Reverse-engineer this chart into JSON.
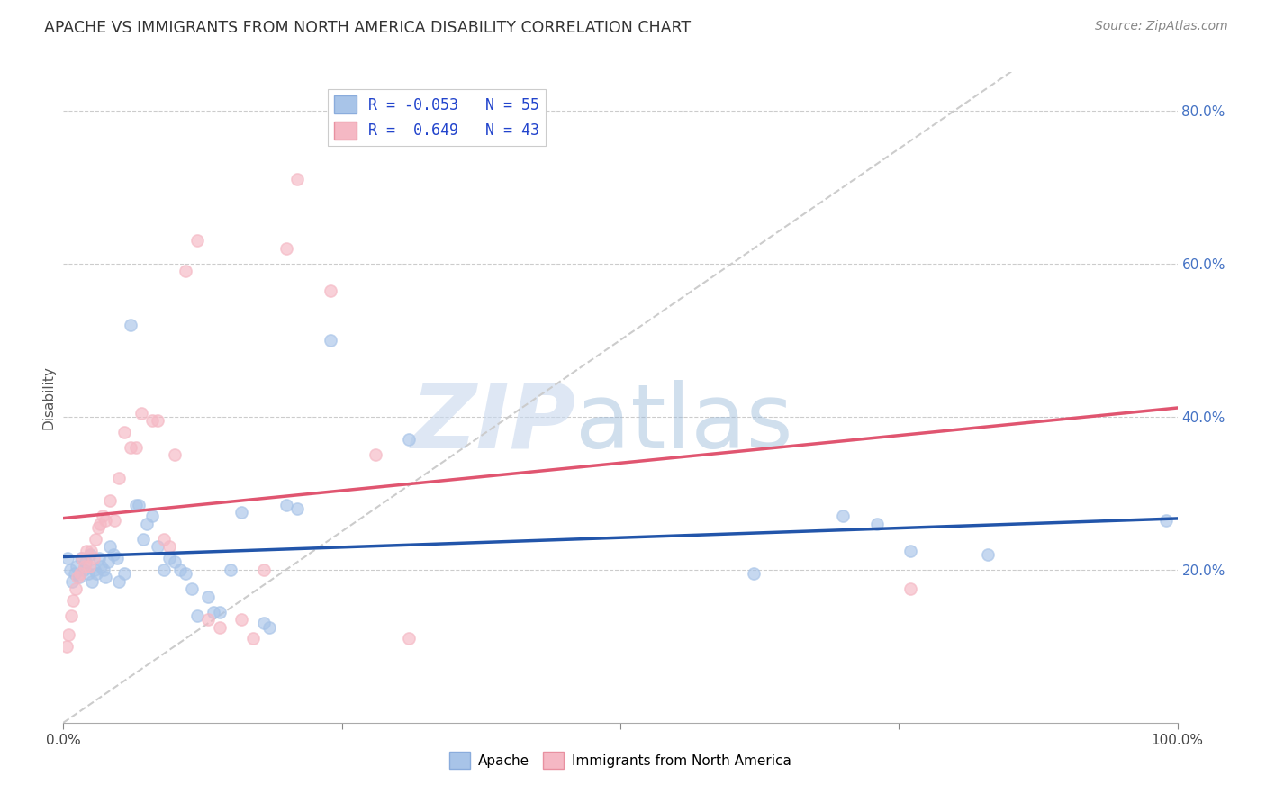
{
  "title": "APACHE VS IMMIGRANTS FROM NORTH AMERICA DISABILITY CORRELATION CHART",
  "source": "Source: ZipAtlas.com",
  "ylabel": "Disability",
  "xlim": [
    0.0,
    1.0
  ],
  "ylim": [
    0.0,
    0.85
  ],
  "x_ticks": [
    0.0,
    0.25,
    0.5,
    0.75,
    1.0
  ],
  "x_tick_labels": [
    "0.0%",
    "",
    "",
    "",
    "100.0%"
  ],
  "y_ticks": [
    0.2,
    0.4,
    0.6,
    0.8
  ],
  "y_tick_labels": [
    "20.0%",
    "40.0%",
    "60.0%",
    "80.0%"
  ],
  "apache_R": "-0.053",
  "apache_N": 55,
  "immigrants_R": "0.649",
  "immigrants_N": 43,
  "apache_color": "#a8c4e8",
  "immigrants_color": "#f5b8c4",
  "apache_line_color": "#2255aa",
  "immigrants_line_color": "#e05570",
  "diagonal_color": "#cccccc",
  "apache_points": [
    [
      0.004,
      0.215
    ],
    [
      0.006,
      0.2
    ],
    [
      0.008,
      0.185
    ],
    [
      0.01,
      0.195
    ],
    [
      0.012,
      0.205
    ],
    [
      0.014,
      0.19
    ],
    [
      0.016,
      0.215
    ],
    [
      0.018,
      0.2
    ],
    [
      0.02,
      0.21
    ],
    [
      0.022,
      0.195
    ],
    [
      0.024,
      0.22
    ],
    [
      0.026,
      0.185
    ],
    [
      0.028,
      0.2
    ],
    [
      0.03,
      0.195
    ],
    [
      0.032,
      0.215
    ],
    [
      0.034,
      0.205
    ],
    [
      0.036,
      0.2
    ],
    [
      0.038,
      0.19
    ],
    [
      0.04,
      0.21
    ],
    [
      0.042,
      0.23
    ],
    [
      0.045,
      0.22
    ],
    [
      0.048,
      0.215
    ],
    [
      0.05,
      0.185
    ],
    [
      0.055,
      0.195
    ],
    [
      0.06,
      0.52
    ],
    [
      0.065,
      0.285
    ],
    [
      0.068,
      0.285
    ],
    [
      0.072,
      0.24
    ],
    [
      0.075,
      0.26
    ],
    [
      0.08,
      0.27
    ],
    [
      0.085,
      0.23
    ],
    [
      0.09,
      0.2
    ],
    [
      0.095,
      0.215
    ],
    [
      0.1,
      0.21
    ],
    [
      0.105,
      0.2
    ],
    [
      0.11,
      0.195
    ],
    [
      0.115,
      0.175
    ],
    [
      0.12,
      0.14
    ],
    [
      0.13,
      0.165
    ],
    [
      0.135,
      0.145
    ],
    [
      0.14,
      0.145
    ],
    [
      0.15,
      0.2
    ],
    [
      0.16,
      0.275
    ],
    [
      0.18,
      0.13
    ],
    [
      0.185,
      0.125
    ],
    [
      0.2,
      0.285
    ],
    [
      0.21,
      0.28
    ],
    [
      0.24,
      0.5
    ],
    [
      0.31,
      0.37
    ],
    [
      0.62,
      0.195
    ],
    [
      0.7,
      0.27
    ],
    [
      0.73,
      0.26
    ],
    [
      0.76,
      0.225
    ],
    [
      0.83,
      0.22
    ],
    [
      0.99,
      0.265
    ]
  ],
  "immigrants_points": [
    [
      0.003,
      0.1
    ],
    [
      0.005,
      0.115
    ],
    [
      0.007,
      0.14
    ],
    [
      0.009,
      0.16
    ],
    [
      0.011,
      0.175
    ],
    [
      0.013,
      0.19
    ],
    [
      0.015,
      0.195
    ],
    [
      0.017,
      0.215
    ],
    [
      0.019,
      0.205
    ],
    [
      0.021,
      0.225
    ],
    [
      0.023,
      0.205
    ],
    [
      0.025,
      0.225
    ],
    [
      0.027,
      0.215
    ],
    [
      0.029,
      0.24
    ],
    [
      0.031,
      0.255
    ],
    [
      0.033,
      0.26
    ],
    [
      0.035,
      0.27
    ],
    [
      0.038,
      0.265
    ],
    [
      0.042,
      0.29
    ],
    [
      0.046,
      0.265
    ],
    [
      0.05,
      0.32
    ],
    [
      0.055,
      0.38
    ],
    [
      0.06,
      0.36
    ],
    [
      0.065,
      0.36
    ],
    [
      0.07,
      0.405
    ],
    [
      0.08,
      0.395
    ],
    [
      0.085,
      0.395
    ],
    [
      0.09,
      0.24
    ],
    [
      0.095,
      0.23
    ],
    [
      0.1,
      0.35
    ],
    [
      0.11,
      0.59
    ],
    [
      0.12,
      0.63
    ],
    [
      0.13,
      0.135
    ],
    [
      0.14,
      0.125
    ],
    [
      0.16,
      0.135
    ],
    [
      0.17,
      0.11
    ],
    [
      0.18,
      0.2
    ],
    [
      0.2,
      0.62
    ],
    [
      0.21,
      0.71
    ],
    [
      0.24,
      0.565
    ],
    [
      0.28,
      0.35
    ],
    [
      0.31,
      0.11
    ],
    [
      0.76,
      0.175
    ]
  ]
}
